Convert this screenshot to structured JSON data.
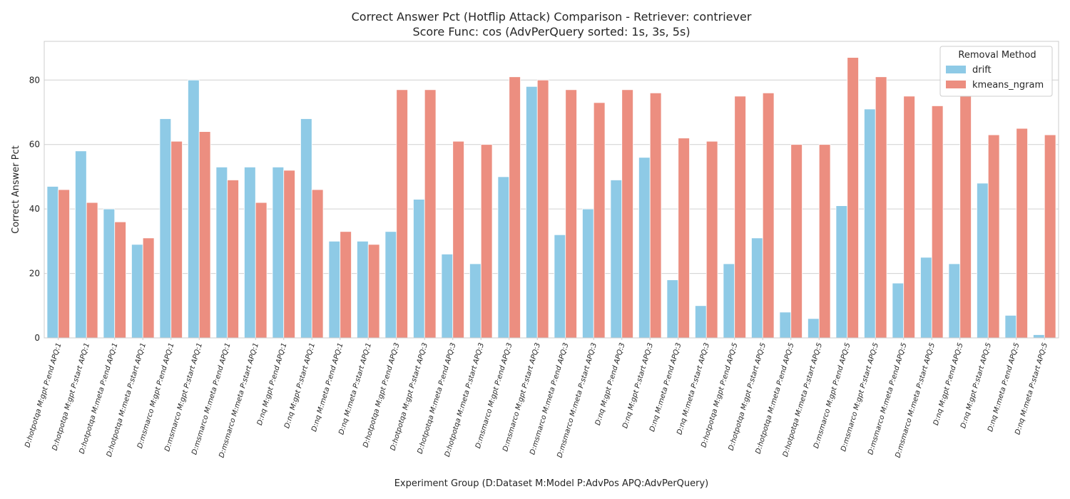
{
  "chart_data": {
    "type": "bar",
    "title": [
      "Correct Answer Pct (Hotflip Attack) Comparison - Retriever: contriever",
      "Score Func: cos (AdvPerQuery sorted: 1s, 3s, 5s)"
    ],
    "xlabel": "Experiment Group (D:Dataset M:Model P:AdvPos APQ:AdvPerQuery)",
    "ylabel": "Correct Answer Pct",
    "ylim": [
      0,
      92
    ],
    "yticks": [
      0,
      20,
      40,
      60,
      80
    ],
    "grid": true,
    "legend": {
      "title": "Removal Method",
      "position": "top-right"
    },
    "categories": [
      "D:hotpotqa M:gpt P:end APQ:1",
      "D:hotpotqa M:gpt P:start APQ:1",
      "D:hotpotqa M:meta P:end APQ:1",
      "D:hotpotqa M:meta P:start APQ:1",
      "D:msmarco M:gpt P:end APQ:1",
      "D:msmarco M:gpt P:start APQ:1",
      "D:msmarco M:meta P:end APQ:1",
      "D:msmarco M:meta P:start APQ:1",
      "D:nq M:gpt P:end APQ:1",
      "D:nq M:gpt P:start APQ:1",
      "D:nq M:meta P:end APQ:1",
      "D:nq M:meta P:start APQ:1",
      "D:hotpotqa M:gpt P:end APQ:3",
      "D:hotpotqa M:gpt P:start APQ:3",
      "D:hotpotqa M:meta P:end APQ:3",
      "D:hotpotqa M:meta P:start APQ:3",
      "D:msmarco M:gpt P:end APQ:3",
      "D:msmarco M:gpt P:start APQ:3",
      "D:msmarco M:meta P:end APQ:3",
      "D:msmarco M:meta P:start APQ:3",
      "D:nq M:gpt P:end APQ:3",
      "D:nq M:gpt P:start APQ:3",
      "D:nq M:meta P:end APQ:3",
      "D:nq M:meta P:start APQ:3",
      "D:hotpotqa M:gpt P:end APQ:5",
      "D:hotpotqa M:gpt P:start APQ:5",
      "D:hotpotqa M:meta P:end APQ:5",
      "D:hotpotqa M:meta P:start APQ:5",
      "D:msmarco M:gpt P:end APQ:5",
      "D:msmarco M:gpt P:start APQ:5",
      "D:msmarco M:meta P:end APQ:5",
      "D:msmarco M:meta P:start APQ:5",
      "D:nq M:gpt P:end APQ:5",
      "D:nq M:gpt P:start APQ:5",
      "D:nq M:meta P:end APQ:5",
      "D:nq M:meta P:start APQ:5"
    ],
    "series": [
      {
        "name": "drift",
        "color": "#8ecae6",
        "values": [
          47,
          58,
          40,
          29,
          68,
          80,
          53,
          53,
          53,
          68,
          30,
          30,
          33,
          43,
          26,
          23,
          50,
          78,
          32,
          40,
          49,
          56,
          18,
          10,
          23,
          31,
          8,
          6,
          41,
          71,
          17,
          25,
          23,
          48,
          7,
          1
        ]
      },
      {
        "name": "kmeans_ngram",
        "color": "#ec8e80",
        "values": [
          46,
          42,
          36,
          31,
          61,
          64,
          49,
          42,
          52,
          46,
          33,
          29,
          77,
          77,
          61,
          60,
          81,
          80,
          77,
          73,
          77,
          76,
          62,
          61,
          75,
          76,
          60,
          60,
          87,
          81,
          75,
          72,
          75,
          63,
          65,
          63
        ]
      }
    ]
  }
}
